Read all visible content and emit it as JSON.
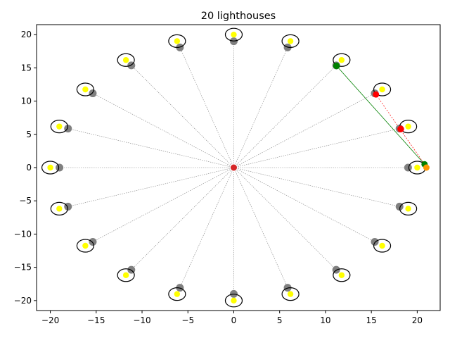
{
  "chart_data": {
    "type": "scatter",
    "title": "20 lighthouses",
    "xlabel": "",
    "ylabel": "",
    "xlim": [
      -21.5,
      22.5
    ],
    "ylim": [
      -21.5,
      21.5
    ],
    "xticks": [
      -20,
      -15,
      -10,
      -5,
      0,
      5,
      10,
      15,
      20
    ],
    "yticks": [
      -20,
      -15,
      -10,
      -5,
      0,
      5,
      10,
      15,
      20
    ],
    "xtick_labels": [
      "−20",
      "−15",
      "−10",
      "−5",
      "0",
      "5",
      "10",
      "15",
      "20"
    ],
    "ytick_labels": [
      "−20",
      "−15",
      "−10",
      "−5",
      "0",
      "5",
      "10",
      "15",
      "20"
    ],
    "grid": false,
    "center": {
      "x": 0,
      "y": 0,
      "color": "#d62728"
    },
    "lighthouse_radius": 20,
    "lighthouse_count": 20,
    "colors": {
      "lamp": "#ffff00",
      "base": "#808080",
      "ring": "#000000",
      "ray": "#808080",
      "green": "#008000",
      "red": "#ff0000",
      "orange": "#ff9900"
    },
    "observer": {
      "x": 21.0,
      "y": 0.0
    },
    "green_path": {
      "from": [
        20.8,
        0.5
      ],
      "to": [
        11.2,
        15.3
      ]
    },
    "red_path": {
      "from": [
        20.8,
        0.5
      ],
      "to": [
        15.5,
        11.0
      ],
      "via": [
        18.2,
        5.8
      ]
    }
  }
}
